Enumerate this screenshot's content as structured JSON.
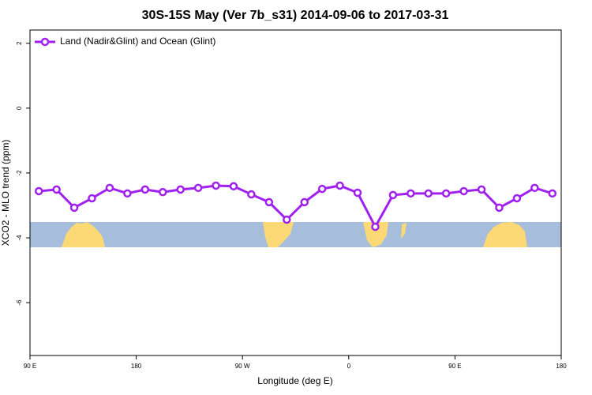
{
  "chart_data": {
    "type": "line",
    "title": "30S-15S May (Ver 7b_s31)   2014-09-06 to 2017-03-31",
    "x_label": "Longitude (deg E)",
    "y_label": "XCO2 - MLO trend (ppm)",
    "series": [
      {
        "name": "Land (Nadir&Glint) and Ocean (Glint)",
        "color": "#a020f0",
        "x": [
          97.5,
          112.5,
          127.5,
          142.5,
          157.5,
          172.5,
          187.5,
          202.5,
          217.5,
          232.5,
          247.5,
          262.5,
          277.5,
          292.5,
          307.5,
          322.5,
          337.5,
          352.5,
          367.5,
          382.5,
          397.5,
          412.5,
          427.5,
          442.5,
          457.5,
          472.5,
          487.5,
          502.5,
          517.5,
          532.5
        ],
        "values": [
          -2.56,
          -2.51,
          -3.07,
          -2.78,
          -2.46,
          -2.63,
          -2.51,
          -2.59,
          -2.51,
          -2.46,
          -2.39,
          -2.41,
          -2.66,
          -2.9,
          -3.44,
          -2.9,
          -2.49,
          -2.39,
          -2.61,
          -3.66,
          -2.68,
          -2.63,
          -2.63,
          -2.63,
          -2.56,
          -2.51,
          -3.07,
          -2.78,
          -2.46,
          -2.63
        ]
      }
    ],
    "xlim": [
      90,
      540
    ],
    "xticks": [
      {
        "value": 90,
        "label": "90 E"
      },
      180,
      {
        "value": 270,
        "label": "90 W"
      },
      {
        "value": 360,
        "label": "0"
      },
      {
        "value": 450,
        "label": "90 E"
      },
      {
        "value": 540,
        "label": "180"
      }
    ],
    "ylim": [
      -7.63,
      2.41
    ],
    "yticks": [
      -6,
      -4,
      -2,
      0,
      2
    ],
    "legend": "top-left"
  }
}
